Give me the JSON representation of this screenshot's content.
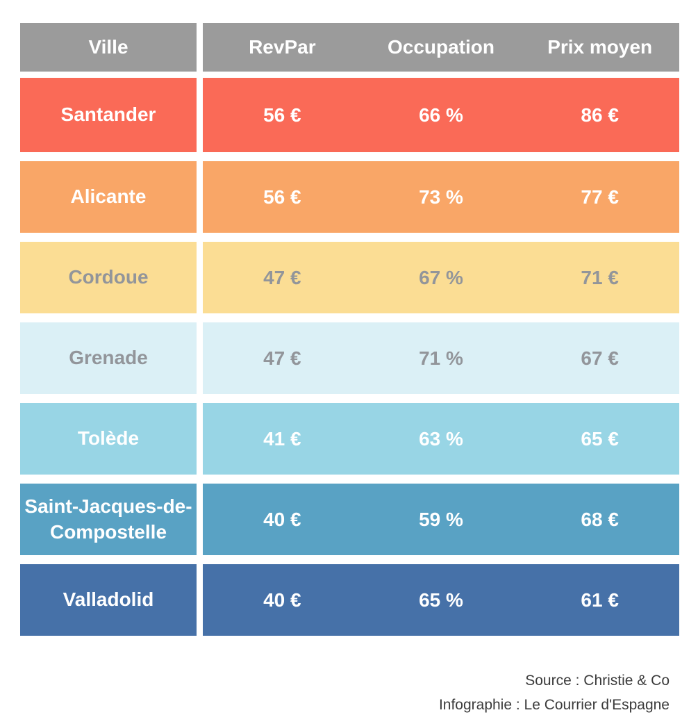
{
  "colors": {
    "header_bg": "#9B9B9B",
    "header_text": "#FFFFFF",
    "gray_text": "#92959A",
    "footer_text": "#3B3B3B",
    "background": "#FFFFFF"
  },
  "table": {
    "header": {
      "ville": "Ville",
      "columns": [
        "RevPar",
        "Occupation",
        "Prix moyen"
      ]
    },
    "rows": [
      {
        "city": "Santander",
        "revpar": "56 €",
        "occupation": "66 %",
        "prix_moyen": "86 €",
        "bg": "#FA6A57",
        "text_color": "#FFFFFF"
      },
      {
        "city": "Alicante",
        "revpar": "56 €",
        "occupation": "73 %",
        "prix_moyen": "77 €",
        "bg": "#F9A667",
        "text_color": "#FFFFFF"
      },
      {
        "city": "Cordoue",
        "revpar": "47 €",
        "occupation": "67 %",
        "prix_moyen": "71 €",
        "bg": "#FBDD94",
        "text_color": "#92959A"
      },
      {
        "city": "Grenade",
        "revpar": "47 €",
        "occupation": "71 %",
        "prix_moyen": "67 €",
        "bg": "#DBF0F6",
        "text_color": "#92959A"
      },
      {
        "city": "Tolède",
        "revpar": "41 €",
        "occupation": "63 %",
        "prix_moyen": "65 €",
        "bg": "#98D5E5",
        "text_color": "#FFFFFF"
      },
      {
        "city": "Saint-Jacques-de-Compostelle",
        "revpar": "40 €",
        "occupation": "59 %",
        "prix_moyen": "68 €",
        "bg": "#59A2C4",
        "text_color": "#FFFFFF"
      },
      {
        "city": "Valladolid",
        "revpar": "40 €",
        "occupation": "65 %",
        "prix_moyen": "61 €",
        "bg": "#4671A8",
        "text_color": "#FFFFFF"
      }
    ]
  },
  "footer": {
    "source": "Source : Christie & Co",
    "infographie": "Infographie : Le Courrier d'Espagne"
  },
  "chart_data": {
    "type": "table",
    "title": "",
    "columns": [
      "Ville",
      "RevPar",
      "Occupation",
      "Prix moyen"
    ],
    "rows": [
      [
        "Santander",
        "56 €",
        "66 %",
        "86 €"
      ],
      [
        "Alicante",
        "56 €",
        "73 %",
        "77 €"
      ],
      [
        "Cordoue",
        "47 €",
        "67 %",
        "71 €"
      ],
      [
        "Grenade",
        "47 €",
        "71 %",
        "67 €"
      ],
      [
        "Tolède",
        "41 €",
        "63 %",
        "65 €"
      ],
      [
        "Saint-Jacques-de-Compostelle",
        "40 €",
        "59 %",
        "68 €"
      ],
      [
        "Valladolid",
        "40 €",
        "65 %",
        "61 €"
      ]
    ],
    "revpar_eur": [
      56,
      56,
      47,
      47,
      41,
      40,
      40
    ],
    "occupation_pct": [
      66,
      73,
      67,
      71,
      63,
      59,
      65
    ],
    "prix_moyen_eur": [
      86,
      77,
      71,
      67,
      65,
      68,
      61
    ],
    "source": "Christie & Co",
    "infographie": "Le Courrier d'Espagne"
  }
}
